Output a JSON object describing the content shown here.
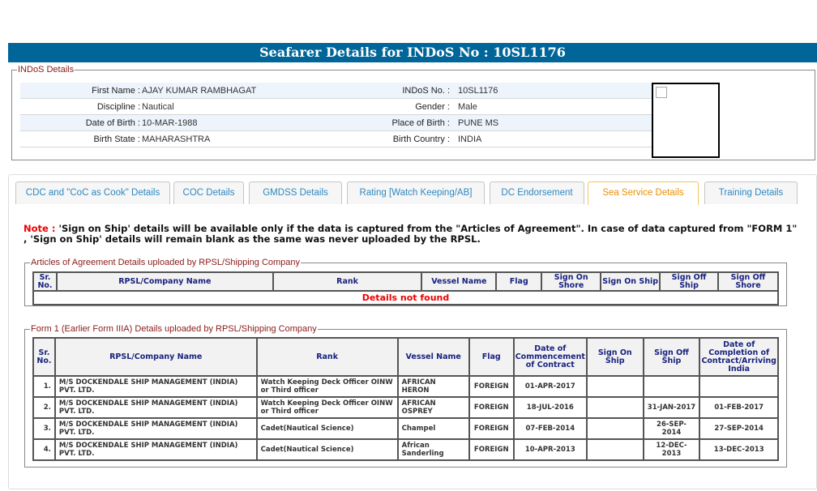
{
  "title": "Seafarer Details for INDoS No : 10SL1176",
  "indos": {
    "legend": "INDoS Details",
    "rows": [
      {
        "l1": "First Name :",
        "v1": "AJAY KUMAR RAMBHAGAT",
        "l2": "INDoS No. :",
        "v2": "10SL1176"
      },
      {
        "l1": "Discipline :",
        "v1": "Nautical",
        "l2": "Gender :",
        "v2": "Male"
      },
      {
        "l1": "Date of Birth :",
        "v1": "10-MAR-1988",
        "l2": "Place of Birth :",
        "v2": "PUNE MS"
      },
      {
        "l1": "Birth State :",
        "v1": "MAHARASHTRA",
        "l2": "Birth Country :",
        "v2": "INDIA"
      }
    ]
  },
  "tabs": [
    "CDC and \"CoC as Cook\" Details",
    "COC Details",
    "GMDSS Details",
    "Rating [Watch Keeping/AB]",
    "DC Endorsement",
    "Sea Service Details",
    "Training Details"
  ],
  "active_tab": "Sea Service Details",
  "note": {
    "prefix": "Note :",
    "text": " 'Sign on Ship' details will be available only if the data is captured from the \"Articles of Agreement\". In case of data captured from \"FORM 1\" , 'Sign on Ship' details will remain blank as the same was never uploaded by the RPSL."
  },
  "articles": {
    "legend": "Articles of Agreement Details uploaded by RPSL/Shipping Company",
    "headers": [
      "Sr. No.",
      "RPSL/Company Name",
      "Rank",
      "Vessel Name",
      "Flag",
      "Sign On Shore",
      "Sign On Ship",
      "Sign Off Ship",
      "Sign Off Shore"
    ],
    "empty": "Details not found"
  },
  "form1": {
    "legend": "Form 1 (Earlier Form IIIA) Details uploaded by RPSL/Shipping Company",
    "headers": [
      "Sr. No.",
      "RPSL/Company Name",
      "Rank",
      "Vessel Name",
      "Flag",
      "Date of Commencement of Contract",
      "Sign On Ship",
      "Sign Off Ship",
      "Date of Completion of Contract/Arriving India"
    ],
    "rows": [
      [
        "1.",
        "M/S DOCKENDALE SHIP MANAGEMENT (INDIA) PVT. LTD.",
        "Watch Keeping Deck Officer OINW or Third officer",
        "AFRICAN HERON",
        "FOREIGN",
        "01-APR-2017",
        "",
        "",
        ""
      ],
      [
        "2.",
        "M/S DOCKENDALE SHIP MANAGEMENT (INDIA) PVT. LTD.",
        "Watch Keeping Deck Officer OINW or Third officer",
        "AFRICAN OSPREY",
        "FOREIGN",
        "18-JUL-2016",
        "",
        "31-JAN-2017",
        "01-FEB-2017"
      ],
      [
        "3.",
        "M/S DOCKENDALE SHIP MANAGEMENT (INDIA) PVT. LTD.",
        "Cadet(Nautical Science)",
        "Champel",
        "FOREIGN",
        "07-FEB-2014",
        "",
        "26-SEP-2014",
        "27-SEP-2014"
      ],
      [
        "4.",
        "M/S DOCKENDALE SHIP MANAGEMENT (INDIA) PVT. LTD.",
        "Cadet(Nautical Science)",
        "African Sanderling",
        "FOREIGN",
        "10-APR-2013",
        "",
        "12-DEC-2013",
        "13-DEC-2013"
      ]
    ]
  },
  "colors": {
    "header": "#006699",
    "active_tab": "#eb8f00",
    "tab_text": "#2e88c0",
    "error": "#e00000"
  }
}
